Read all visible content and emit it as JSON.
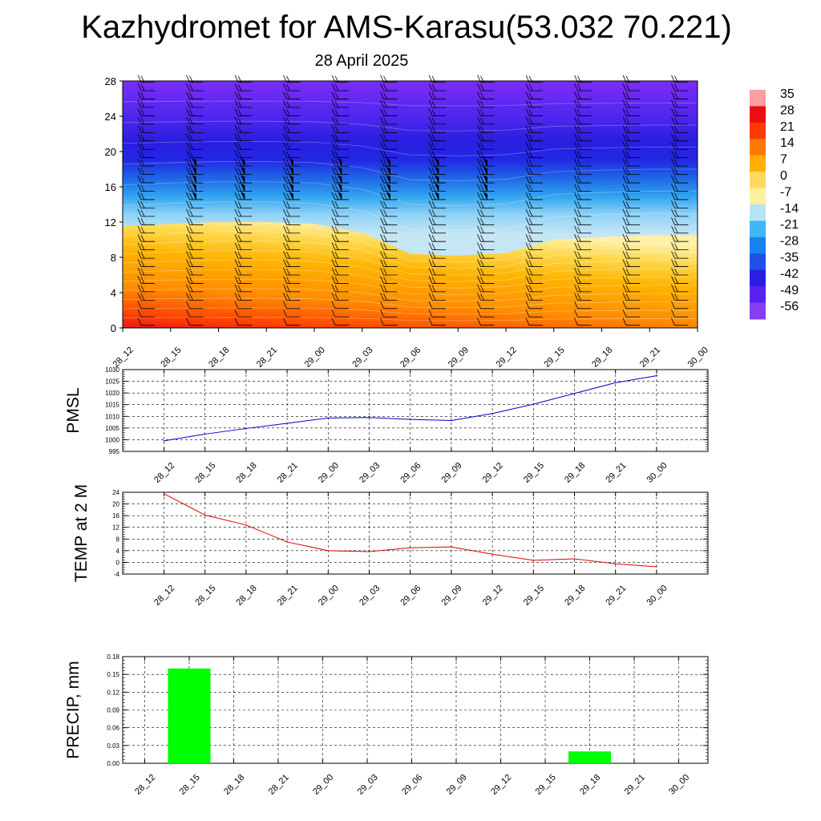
{
  "header": {
    "title": "Kazhydromet for AMS-Karasu(53.032 70.221)",
    "date": "28 April 2025"
  },
  "colors": {
    "warm": "#ff2a00",
    "cold": "#6a20ff",
    "pressure_line": "#0000cc",
    "temp_line": "#e00000",
    "precip_bar": "#00ff00"
  },
  "chart_data": [
    {
      "type": "heatmap",
      "title": "",
      "xlabel": "",
      "ylabel": "",
      "x": [
        "28_12",
        "28_15",
        "28_18",
        "28_21",
        "29_00",
        "29_03",
        "29_06",
        "29_09",
        "29_12",
        "29_15",
        "29_18",
        "29_21",
        "30_00"
      ],
      "y_ticks": [
        "0",
        "4",
        "8",
        "12",
        "16",
        "20",
        "24",
        "28"
      ],
      "ylim": [
        0,
        28
      ],
      "freezing_level": [
        11.5,
        11.8,
        12.0,
        12.0,
        11.8,
        10.8,
        8.4,
        8.2,
        8.5,
        10.0,
        10.3,
        10.5,
        10.5
      ],
      "colorbar": {
        "labels": [
          "35",
          "28",
          "21",
          "14",
          "7",
          "0",
          "-7",
          "-14",
          "-21",
          "-28",
          "-35",
          "-42",
          "-49",
          "-56"
        ],
        "colors": [
          "#ff9f9f",
          "#e81010",
          "#ff3a00",
          "#ff7a00",
          "#ffb000",
          "#ffd860",
          "#fff0a0",
          "#b8e2f6",
          "#40b6f2",
          "#1a82ee",
          "#2050e8",
          "#2a1ee6",
          "#5a22f0",
          "#8a3cf2"
        ]
      },
      "legend": "right",
      "wind_barbs": true
    },
    {
      "type": "line",
      "ylabel": "PMSL",
      "x": [
        "28_12",
        "28_15",
        "28_18",
        "28_21",
        "29_00",
        "29_03",
        "29_06",
        "29_09",
        "29_12",
        "29_15",
        "29_18",
        "29_21",
        "30_00"
      ],
      "series": [
        {
          "values": [
            999.5,
            1002.4,
            1004.8,
            1007.0,
            1009.3,
            1009.5,
            1008.7,
            1008.2,
            1011.2,
            1015.2,
            1019.8,
            1024.4,
            1027.4
          ]
        }
      ],
      "y_ticks": [
        "995",
        "1000",
        "1005",
        "1010",
        "1015",
        "1020",
        "1025",
        "1030"
      ],
      "ylim": [
        995,
        1030
      ],
      "grid": true
    },
    {
      "type": "line",
      "ylabel": "TEMP at 2 M",
      "x": [
        "28_12",
        "28_15",
        "28_18",
        "28_21",
        "29_00",
        "29_03",
        "29_06",
        "29_09",
        "29_12",
        "29_15",
        "29_18",
        "29_21",
        "30_00"
      ],
      "series": [
        {
          "values": [
            23.5,
            16.2,
            12.8,
            7.0,
            4.0,
            3.7,
            5.0,
            5.3,
            2.8,
            0.7,
            1.2,
            -0.5,
            -1.5
          ]
        }
      ],
      "y_ticks": [
        "-4",
        "0",
        "4",
        "8",
        "12",
        "16",
        "20",
        "24"
      ],
      "ylim": [
        -4,
        24
      ],
      "grid": true
    },
    {
      "type": "bar",
      "ylabel": "PRECIP, mm",
      "categories": [
        "28_12",
        "28_15",
        "28_18",
        "28_21",
        "29_00",
        "29_03",
        "29_06",
        "29_09",
        "29_12",
        "29_15",
        "29_18",
        "29_21",
        "30_00"
      ],
      "values": [
        0,
        0.16,
        0,
        0,
        0,
        0,
        0,
        0,
        0,
        0,
        0.02,
        0,
        0
      ],
      "y_ticks": [
        "0.00",
        "0.03",
        "0.06",
        "0.09",
        "0.12",
        "0.15",
        "0.18"
      ],
      "ylim": [
        0,
        0.18
      ],
      "grid": true
    }
  ]
}
